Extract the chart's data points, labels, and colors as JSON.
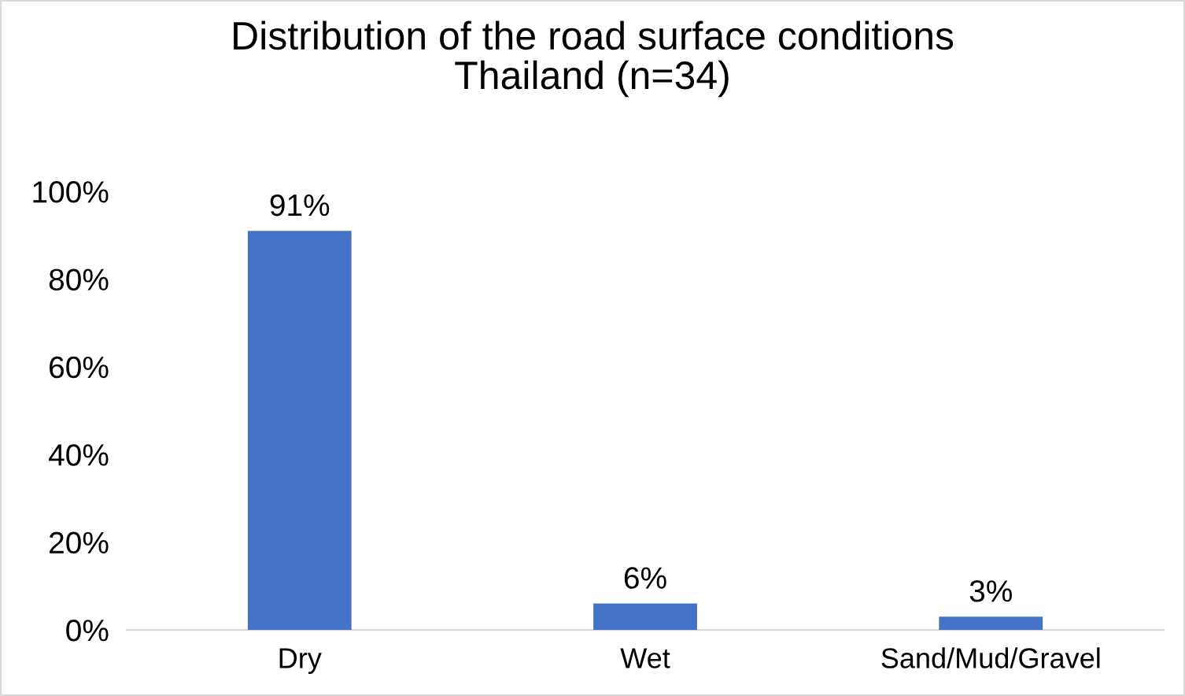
{
  "chart_data": {
    "type": "bar",
    "title": "Distribution of the road surface conditions\nThailand (n=34)",
    "categories": [
      "Dry",
      "Wet",
      "Sand/Mud/Gravel"
    ],
    "values": [
      91,
      6,
      3
    ],
    "value_labels": [
      "91%",
      "6%",
      "3%"
    ],
    "color": "#4472c4",
    "ylim": [
      0,
      100
    ],
    "yticks": [
      {
        "value": 0,
        "label": "0%"
      },
      {
        "value": 20,
        "label": "20%"
      },
      {
        "value": 40,
        "label": "40%"
      },
      {
        "value": 60,
        "label": "60%"
      },
      {
        "value": 80,
        "label": "80%"
      },
      {
        "value": 100,
        "label": "100%"
      }
    ],
    "grid": false
  }
}
